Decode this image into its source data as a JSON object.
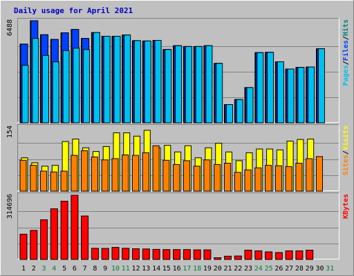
{
  "chart_data": {
    "type": "bar",
    "title": "Daily usage for April 2021",
    "categories": [
      "1",
      "2",
      "3",
      "4",
      "5",
      "6",
      "7",
      "8",
      "9",
      "10",
      "11",
      "12",
      "13",
      "14",
      "15",
      "16",
      "17",
      "18",
      "19",
      "20",
      "21",
      "22",
      "23",
      "24",
      "25",
      "26",
      "27",
      "28",
      "29",
      "30",
      "31"
    ],
    "weekend_days": [
      "3",
      "4",
      "10",
      "11",
      "17",
      "18",
      "24",
      "25",
      "31"
    ],
    "panels": [
      {
        "name": "hits-files-pages",
        "ymax_label": "6488",
        "ymax": 6488,
        "legend": [
          {
            "text": "Pages",
            "color": "#00c0f0"
          },
          {
            "text": "/",
            "color": "#000000"
          },
          {
            "text": "Files",
            "color": "#0040ff"
          },
          {
            "text": "/",
            "color": "#000000"
          },
          {
            "text": "Hits",
            "color": "#008080"
          }
        ],
        "series": [
          {
            "name": "Hits",
            "color": "#008080",
            "values": [
              5000,
              6488,
              5600,
              5300,
              5720,
              5930,
              5360,
              5740,
              5500,
              5500,
              5580,
              5220,
              5200,
              5240,
              4660,
              4900,
              4850,
              4850,
              4900,
              3780,
              1160,
              1480,
              2240,
              4460,
              4480,
              3880,
              3420,
              3520,
              3550,
              4710,
              0
            ]
          },
          {
            "name": "Files",
            "color": "#0040ff",
            "values": [
              5000,
              6488,
              5600,
              5300,
              5720,
              5930,
              5360,
              5740,
              5500,
              5500,
              5580,
              5220,
              5200,
              5240,
              4660,
              4900,
              4850,
              4850,
              4900,
              3780,
              1160,
              1480,
              2240,
              4460,
              4480,
              3880,
              3420,
              3520,
              3550,
              4710,
              0
            ]
          },
          {
            "name": "Pages",
            "color": "#00c0f0",
            "values": [
              3650,
              5360,
              4280,
              3870,
              4590,
              4740,
              4650,
              5740,
              5500,
              5500,
              5580,
              5220,
              5200,
              5240,
              4660,
              4900,
              4850,
              4850,
              4900,
              3780,
              1160,
              1480,
              2240,
              4460,
              4480,
              3880,
              3420,
              3520,
              3550,
              4710,
              0
            ]
          }
        ]
      },
      {
        "name": "visits-sites",
        "ymax_label": "154",
        "ymax": 154,
        "legend": [
          {
            "text": "Sites",
            "color": "#ff8000"
          },
          {
            "text": "/",
            "color": "#000000"
          },
          {
            "text": "Visits",
            "color": "#ffff00"
          }
        ],
        "series": [
          {
            "name": "Visits",
            "color": "#ffff00",
            "values": [
              80,
              68,
              60,
              62,
              119,
              125,
              104,
              95,
              107,
              140,
              140,
              132,
              146,
              104,
              110,
              94,
              109,
              80,
              104,
              115,
              94,
              73,
              92,
              101,
              101,
              99,
              120,
              124,
              125,
              0,
              0
            ]
          },
          {
            "name": "Sites",
            "color": "#ff8000",
            "values": [
              74,
              62,
              48,
              46,
              48,
              86,
              97,
              82,
              75,
              78,
              87,
              86,
              92,
              109,
              74,
              64,
              73,
              60,
              75,
              64,
              67,
              45,
              51,
              56,
              62,
              61,
              59,
              67,
              78,
              83,
              0
            ]
          }
        ]
      },
      {
        "name": "kbytes",
        "ymax_label": "314696",
        "ymax": 314696,
        "legend": [
          {
            "text": "KBytes",
            "color": "#ff0000"
          }
        ],
        "series": [
          {
            "name": "KBytes",
            "color": "#ff0000",
            "values": [
              123800,
              142550,
              194500,
              248500,
              285650,
              314696,
              213150,
              54950,
              54000,
              59050,
              54950,
              52400,
              51550,
              49400,
              48550,
              48300,
              48550,
              47150,
              47150,
              8450,
              16050,
              16950,
              45550,
              42150,
              37100,
              33700,
              42150,
              41800,
              45550,
              0,
              0
            ]
          }
        ]
      }
    ]
  }
}
